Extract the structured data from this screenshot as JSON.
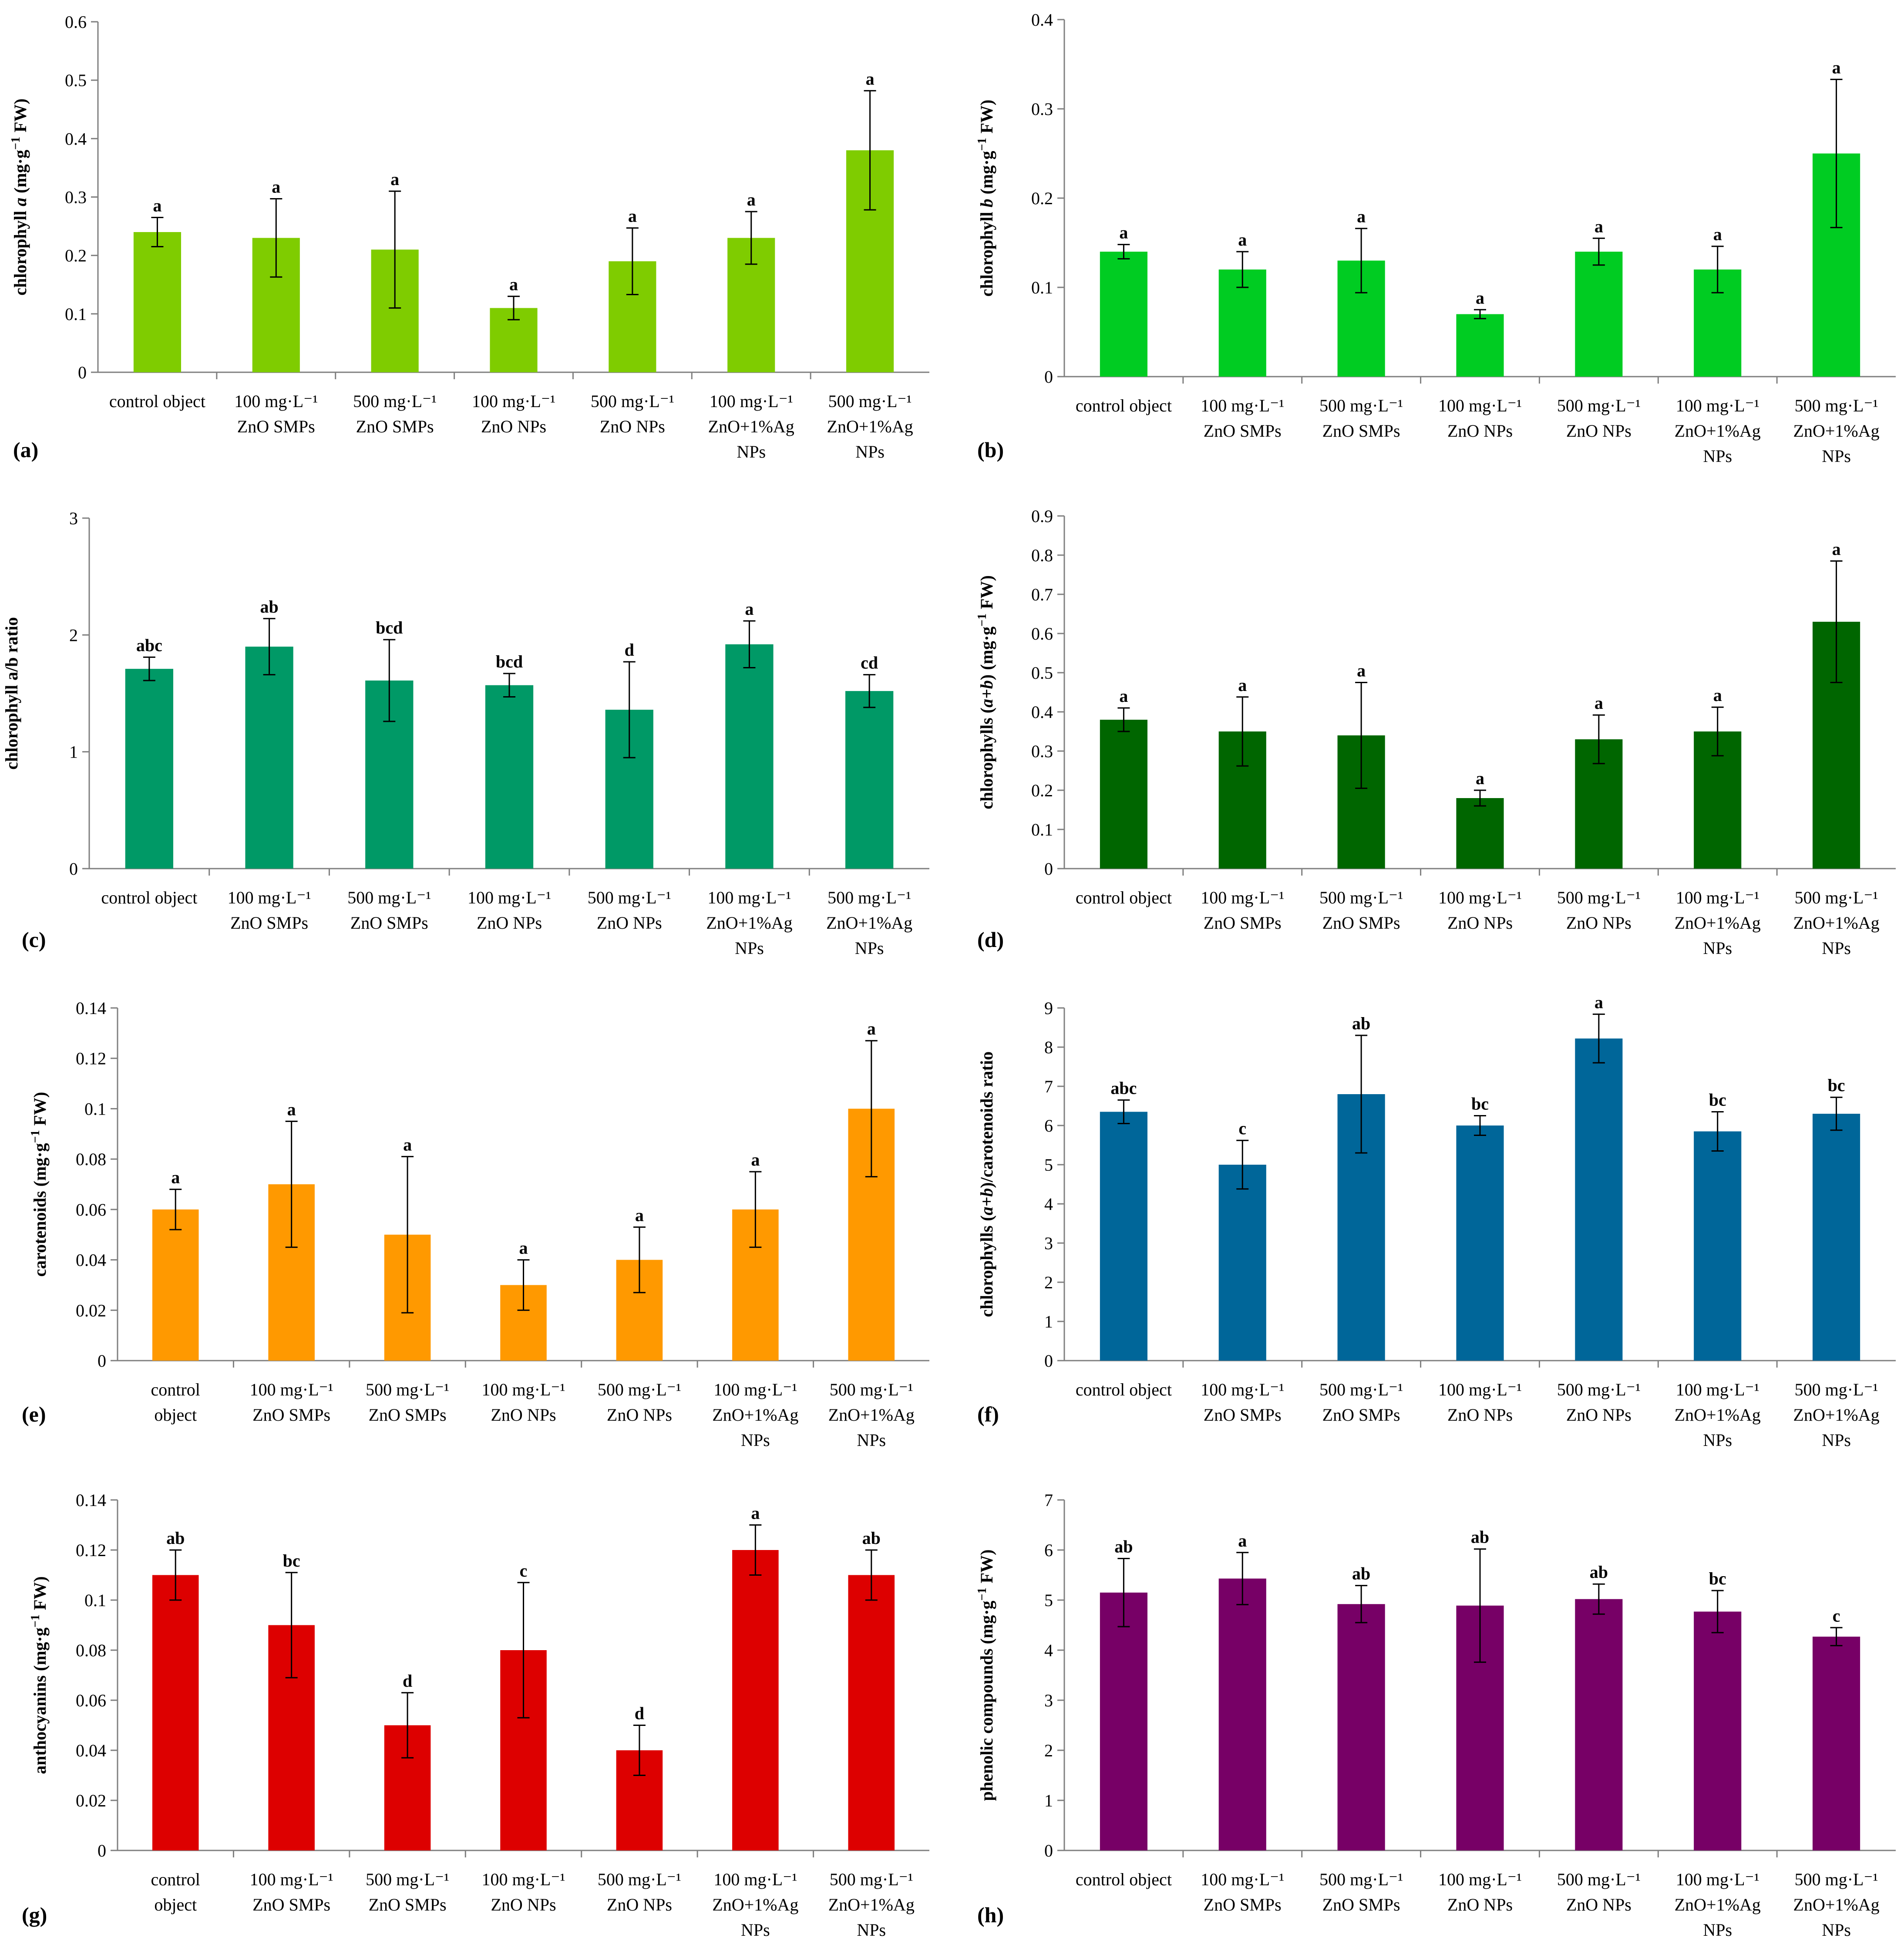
{
  "chart_data": [
    {
      "panel": "(a)",
      "type": "bar",
      "ylabel_parts": [
        "chlorophyll ",
        "a",
        " (mg·g",
        "−1",
        " FW)"
      ],
      "ylim": [
        0,
        0.6
      ],
      "yticks": [
        "0",
        "0.1",
        "0.2",
        "0.3",
        "0.4",
        "0.5",
        "0.6"
      ],
      "color": "#7FCC00",
      "categories": [
        [
          "control object"
        ],
        [
          "100 mg·L⁻¹",
          "ZnO SMPs"
        ],
        [
          "500 mg·L⁻¹",
          "ZnO SMPs"
        ],
        [
          "100 mg·L⁻¹",
          "ZnO NPs"
        ],
        [
          "500 mg·L⁻¹",
          "ZnO NPs"
        ],
        [
          "100 mg·L⁻¹",
          "ZnO+1%Ag",
          "NPs"
        ],
        [
          "500 mg·L⁻¹",
          "ZnO+1%Ag",
          "NPs"
        ]
      ],
      "values": [
        0.24,
        0.23,
        0.21,
        0.11,
        0.19,
        0.23,
        0.38
      ],
      "errors": [
        0.025,
        0.067,
        0.1,
        0.02,
        0.057,
        0.045,
        0.102
      ],
      "letters": [
        "a",
        "a",
        "a",
        "a",
        "a",
        "a",
        "a"
      ]
    },
    {
      "panel": "(b)",
      "type": "bar",
      "ylabel_parts": [
        "chlorophyll ",
        "b",
        " (mg·g",
        "−1",
        " FW)"
      ],
      "ylim": [
        0,
        0.4
      ],
      "yticks": [
        "0",
        "0.1",
        "0.2",
        "0.3",
        "0.4"
      ],
      "color": "#00CC22",
      "categories": [
        [
          "control object"
        ],
        [
          "100 mg·L⁻¹",
          "ZnO SMPs"
        ],
        [
          "500 mg·L⁻¹",
          "ZnO SMPs"
        ],
        [
          "100 mg·L⁻¹",
          "ZnO NPs"
        ],
        [
          "500 mg·L⁻¹",
          "ZnO NPs"
        ],
        [
          "100 mg·L⁻¹",
          "ZnO+1%Ag",
          "NPs"
        ],
        [
          "500 mg·L⁻¹",
          "ZnO+1%Ag",
          "NPs"
        ]
      ],
      "values": [
        0.14,
        0.12,
        0.13,
        0.07,
        0.14,
        0.12,
        0.25
      ],
      "errors": [
        0.008,
        0.02,
        0.036,
        0.005,
        0.015,
        0.026,
        0.083
      ],
      "letters": [
        "a",
        "a",
        "a",
        "a",
        "a",
        "a",
        "a"
      ]
    },
    {
      "panel": "(c)",
      "type": "bar",
      "ylabel_parts": [
        "chlorophyll a/b ratio"
      ],
      "ylim": [
        0,
        3
      ],
      "yticks": [
        "0",
        "1",
        "2",
        "3"
      ],
      "color": "#009966",
      "categories": [
        [
          "control object"
        ],
        [
          "100 mg·L⁻¹",
          "ZnO SMPs"
        ],
        [
          "500 mg·L⁻¹",
          "ZnO SMPs"
        ],
        [
          "100 mg·L⁻¹",
          "ZnO NPs"
        ],
        [
          "500 mg·L⁻¹",
          "ZnO NPs"
        ],
        [
          "100 mg·L⁻¹",
          "ZnO+1%Ag",
          "NPs"
        ],
        [
          "500 mg·L⁻¹",
          "ZnO+1%Ag",
          "NPs"
        ]
      ],
      "values": [
        1.71,
        1.9,
        1.61,
        1.57,
        1.36,
        1.92,
        1.52
      ],
      "errors": [
        0.1,
        0.24,
        0.35,
        0.1,
        0.41,
        0.2,
        0.14
      ],
      "letters": [
        "abc",
        "ab",
        "bcd",
        "bcd",
        "d",
        "a",
        "cd"
      ]
    },
    {
      "panel": "(d)",
      "type": "bar",
      "ylabel_parts": [
        "chlorophylls (",
        "a+b",
        ") (mg·g",
        "−1",
        " FW)"
      ],
      "ylim": [
        0,
        0.9
      ],
      "yticks": [
        "0",
        "0.1",
        "0.2",
        "0.3",
        "0.4",
        "0.5",
        "0.6",
        "0.7",
        "0.8",
        "0.9"
      ],
      "color": "#006600",
      "categories": [
        [
          "control object"
        ],
        [
          "100 mg·L⁻¹",
          "ZnO SMPs"
        ],
        [
          "500 mg·L⁻¹",
          "ZnO SMPs"
        ],
        [
          "100 mg·L⁻¹",
          "ZnO NPs"
        ],
        [
          "500 mg·L⁻¹",
          "ZnO NPs"
        ],
        [
          "100 mg·L⁻¹",
          "ZnO+1%Ag",
          "NPs"
        ],
        [
          "500 mg·L⁻¹",
          "ZnO+1%Ag",
          "NPs"
        ]
      ],
      "values": [
        0.38,
        0.35,
        0.34,
        0.18,
        0.33,
        0.35,
        0.63
      ],
      "errors": [
        0.03,
        0.088,
        0.135,
        0.02,
        0.062,
        0.062,
        0.155
      ],
      "letters": [
        "a",
        "a",
        "a",
        "a",
        "a",
        "a",
        "a"
      ]
    },
    {
      "panel": "(e)",
      "type": "bar",
      "ylabel_parts": [
        "carotenoids (mg·g",
        "−1",
        " FW)"
      ],
      "ylim": [
        0,
        0.14
      ],
      "yticks": [
        "0",
        "0.02",
        "0.04",
        "0.06",
        "0.08",
        "0.1",
        "0.12",
        "0.14"
      ],
      "color": "#FF9900",
      "categories": [
        [
          "control",
          "object"
        ],
        [
          "100 mg·L⁻¹",
          "ZnO SMPs"
        ],
        [
          "500 mg·L⁻¹",
          "ZnO SMPs"
        ],
        [
          "100 mg·L⁻¹",
          "ZnO NPs"
        ],
        [
          "500 mg·L⁻¹",
          "ZnO NPs"
        ],
        [
          "100 mg·L⁻¹",
          "ZnO+1%Ag",
          "NPs"
        ],
        [
          "500 mg·L⁻¹",
          "ZnO+1%Ag",
          "NPs"
        ]
      ],
      "values": [
        0.06,
        0.07,
        0.05,
        0.03,
        0.04,
        0.06,
        0.1
      ],
      "errors": [
        0.008,
        0.025,
        0.031,
        0.01,
        0.013,
        0.015,
        0.027
      ],
      "letters": [
        "a",
        "a",
        "a",
        "a",
        "a",
        "a",
        "a"
      ]
    },
    {
      "panel": "(f)",
      "type": "bar",
      "ylabel_parts": [
        "chlorophylls (",
        "a+b",
        ")/carotenoids ratio"
      ],
      "ylim": [
        0,
        9
      ],
      "yticks": [
        "0",
        "1",
        "2",
        "3",
        "4",
        "5",
        "6",
        "7",
        "8",
        "9"
      ],
      "color": "#006699",
      "categories": [
        [
          "control object"
        ],
        [
          "100 mg·L⁻¹",
          "ZnO SMPs"
        ],
        [
          "500 mg·L⁻¹",
          "ZnO SMPs"
        ],
        [
          "100 mg·L⁻¹",
          "ZnO NPs"
        ],
        [
          "500 mg·L⁻¹",
          "ZnO NPs"
        ],
        [
          "100 mg·L⁻¹",
          "ZnO+1%Ag",
          "NPs"
        ],
        [
          "500 mg·L⁻¹",
          "ZnO+1%Ag",
          "NPs"
        ]
      ],
      "values": [
        6.35,
        5.0,
        6.8,
        6.0,
        8.22,
        5.85,
        6.3
      ],
      "errors": [
        0.3,
        0.62,
        1.5,
        0.25,
        0.62,
        0.5,
        0.42
      ],
      "letters": [
        "abc",
        "c",
        "ab",
        "bc",
        "a",
        "bc",
        "bc"
      ]
    },
    {
      "panel": "(g)",
      "type": "bar",
      "ylabel_parts": [
        "anthocyanins (mg·g",
        "−1",
        " FW)"
      ],
      "ylim": [
        0,
        0.14
      ],
      "yticks": [
        "0",
        "0.02",
        "0.04",
        "0.06",
        "0.08",
        "0.1",
        "0.12",
        "0.14"
      ],
      "color": "#DD0000",
      "categories": [
        [
          "control",
          "object"
        ],
        [
          "100 mg·L⁻¹",
          "ZnO SMPs"
        ],
        [
          "500 mg·L⁻¹",
          "ZnO SMPs"
        ],
        [
          "100 mg·L⁻¹",
          "ZnO NPs"
        ],
        [
          "500 mg·L⁻¹",
          "ZnO NPs"
        ],
        [
          "100 mg·L⁻¹",
          "ZnO+1%Ag",
          "NPs"
        ],
        [
          "500 mg·L⁻¹",
          "ZnO+1%Ag",
          "NPs"
        ]
      ],
      "values": [
        0.11,
        0.09,
        0.05,
        0.08,
        0.04,
        0.12,
        0.11
      ],
      "errors": [
        0.01,
        0.021,
        0.013,
        0.027,
        0.01,
        0.01,
        0.01
      ],
      "letters": [
        "ab",
        "bc",
        "d",
        "c",
        "d",
        "a",
        "ab"
      ]
    },
    {
      "panel": "(h)",
      "type": "bar",
      "ylabel_parts": [
        "phenolic compounds (mg·g",
        "−1",
        " FW)"
      ],
      "ylim": [
        0,
        7
      ],
      "yticks": [
        "0",
        "1",
        "2",
        "3",
        "4",
        "5",
        "6",
        "7"
      ],
      "color": "#770066",
      "categories": [
        [
          "control object"
        ],
        [
          "100 mg·L⁻¹",
          "ZnO SMPs"
        ],
        [
          "500 mg·L⁻¹",
          "ZnO SMPs"
        ],
        [
          "100 mg·L⁻¹",
          "ZnO NPs"
        ],
        [
          "500 mg·L⁻¹",
          "ZnO NPs"
        ],
        [
          "100 mg·L⁻¹",
          "ZnO+1%Ag",
          "NPs"
        ],
        [
          "500 mg·L⁻¹",
          "ZnO+1%Ag",
          "NPs"
        ]
      ],
      "values": [
        5.15,
        5.43,
        4.92,
        4.89,
        5.02,
        4.77,
        4.27
      ],
      "errors": [
        0.68,
        0.52,
        0.37,
        1.13,
        0.3,
        0.42,
        0.18
      ],
      "letters": [
        "ab",
        "a",
        "ab",
        "ab",
        "ab",
        "bc",
        "c"
      ]
    }
  ]
}
